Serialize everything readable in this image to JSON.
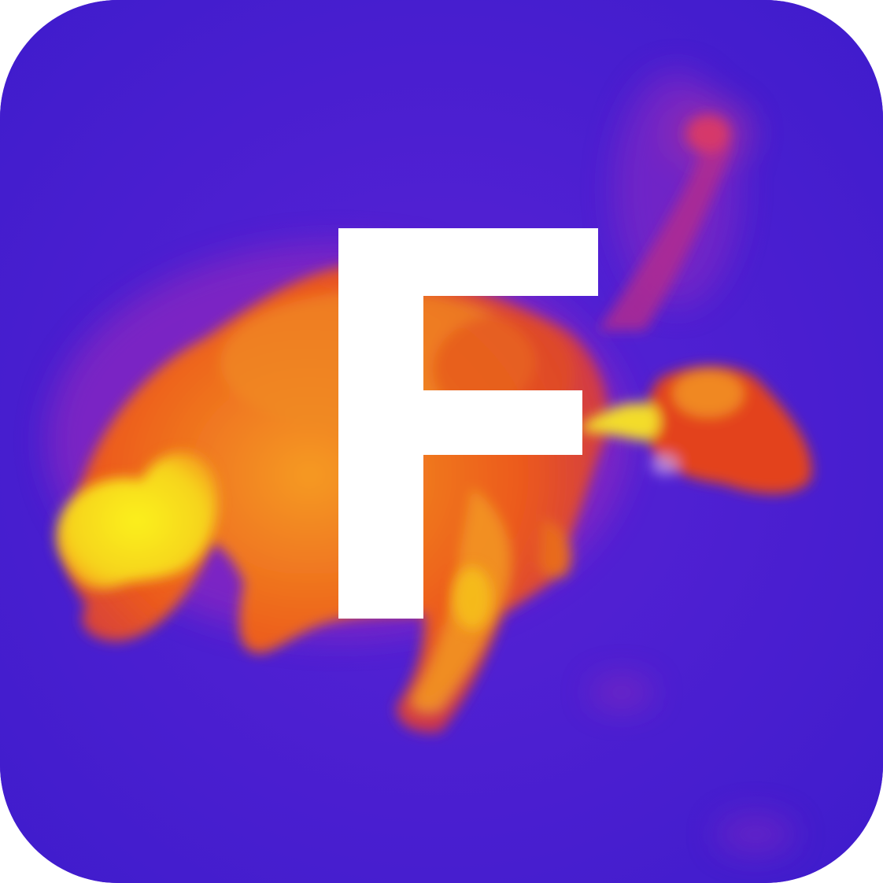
{
  "icon": {
    "letter": "F",
    "image_name": "thermal-animal-image",
    "colors": {
      "background_cold": "#4a1ed2",
      "background_warm": "#7a24c8",
      "body_mid": "#e8401e",
      "body_warm": "#f5901a",
      "body_hot": "#f7e318",
      "letter": "#ffffff"
    }
  }
}
